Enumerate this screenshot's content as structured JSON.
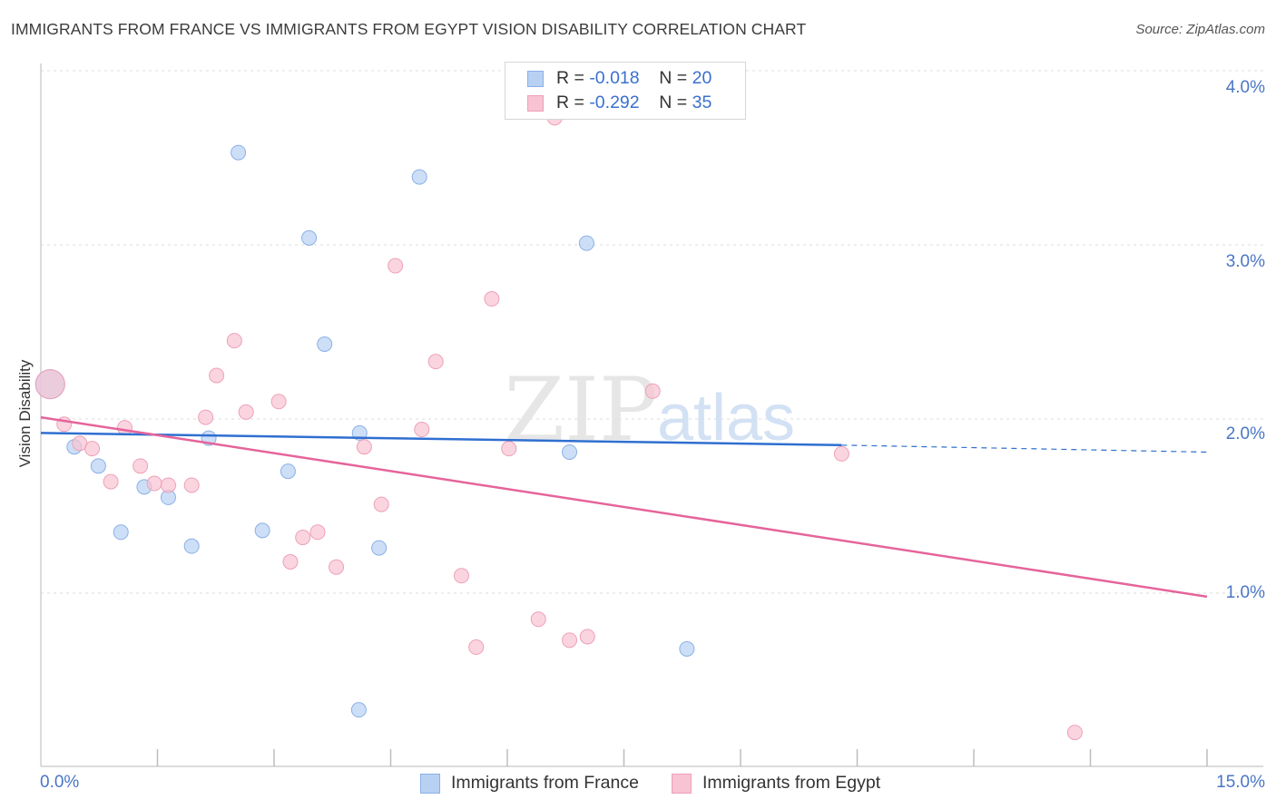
{
  "title": "IMMIGRANTS FROM FRANCE VS IMMIGRANTS FROM EGYPT VISION DISABILITY CORRELATION CHART",
  "source": "Source: ZipAtlas.com",
  "watermark": {
    "part1": "ZIP",
    "part2": "atlas"
  },
  "legend": {
    "france": {
      "r_label": "R = ",
      "r_value": "-0.018",
      "n_label": "N = ",
      "n_value": "20"
    },
    "egypt": {
      "r_label": "R = ",
      "r_value": "-0.292",
      "n_label": "N = ",
      "n_value": "35"
    }
  },
  "colors": {
    "france_fill": "#b8d1f3",
    "france_stroke": "#8ab0e6",
    "france_line": "#2f6fd0",
    "egypt_fill": "#f8c3d2",
    "egypt_stroke": "#eea0b8",
    "egypt_line": "#e5649a",
    "tick_text": "#4a76c7",
    "grid": "#dcdcdc"
  },
  "chart_data": {
    "type": "scatter",
    "title": "IMMIGRANTS FROM FRANCE VS IMMIGRANTS FROM EGYPT VISION DISABILITY CORRELATION CHART",
    "xlabel": "",
    "ylabel": "Vision Disability",
    "xlim": [
      0,
      15
    ],
    "ylim": [
      0,
      4.15
    ],
    "x_tick_labels": [
      "0.0%",
      "15.0%"
    ],
    "y_ticks": [
      1.0,
      2.0,
      3.0,
      4.0
    ],
    "y_tick_labels": [
      "1.0%",
      "2.0%",
      "3.0%",
      "4.0%"
    ],
    "grid": true,
    "legend_position": "top-center",
    "series": [
      {
        "name": "Immigrants from France",
        "r": -0.018,
        "n": 20,
        "trend": {
          "x": [
            0,
            10.3
          ],
          "y": [
            1.92,
            1.85
          ],
          "dashed_to": [
            15.0,
            1.81
          ]
        },
        "points": [
          {
            "x": 0.12,
            "y": 2.2,
            "big": true
          },
          {
            "x": 0.43,
            "y": 1.84
          },
          {
            "x": 0.74,
            "y": 1.73
          },
          {
            "x": 1.03,
            "y": 1.35
          },
          {
            "x": 1.33,
            "y": 1.61
          },
          {
            "x": 1.64,
            "y": 1.55
          },
          {
            "x": 1.94,
            "y": 1.27
          },
          {
            "x": 2.16,
            "y": 1.89
          },
          {
            "x": 2.54,
            "y": 3.53
          },
          {
            "x": 2.85,
            "y": 1.36
          },
          {
            "x": 3.18,
            "y": 1.7
          },
          {
            "x": 3.45,
            "y": 3.04
          },
          {
            "x": 3.65,
            "y": 2.43
          },
          {
            "x": 4.1,
            "y": 1.92
          },
          {
            "x": 4.35,
            "y": 1.26
          },
          {
            "x": 4.09,
            "y": 0.33
          },
          {
            "x": 4.87,
            "y": 3.39
          },
          {
            "x": 6.8,
            "y": 1.81
          },
          {
            "x": 7.02,
            "y": 3.01
          },
          {
            "x": 8.31,
            "y": 0.68
          }
        ]
      },
      {
        "name": "Immigrants from Egypt",
        "r": -0.292,
        "n": 35,
        "trend": {
          "x": [
            0,
            15.0
          ],
          "y": [
            2.01,
            0.98
          ]
        },
        "points": [
          {
            "x": 0.12,
            "y": 2.2,
            "big": true
          },
          {
            "x": 0.3,
            "y": 1.97
          },
          {
            "x": 0.5,
            "y": 1.86
          },
          {
            "x": 0.66,
            "y": 1.83
          },
          {
            "x": 0.9,
            "y": 1.64
          },
          {
            "x": 1.08,
            "y": 1.95
          },
          {
            "x": 1.28,
            "y": 1.73
          },
          {
            "x": 1.46,
            "y": 1.63
          },
          {
            "x": 1.64,
            "y": 1.62
          },
          {
            "x": 1.94,
            "y": 1.62
          },
          {
            "x": 2.12,
            "y": 2.01
          },
          {
            "x": 2.26,
            "y": 2.25
          },
          {
            "x": 2.49,
            "y": 2.45
          },
          {
            "x": 2.64,
            "y": 2.04
          },
          {
            "x": 3.06,
            "y": 2.1
          },
          {
            "x": 3.21,
            "y": 1.18
          },
          {
            "x": 3.37,
            "y": 1.32
          },
          {
            "x": 3.56,
            "y": 1.35
          },
          {
            "x": 3.8,
            "y": 1.15
          },
          {
            "x": 4.16,
            "y": 1.84
          },
          {
            "x": 4.56,
            "y": 2.88
          },
          {
            "x": 4.38,
            "y": 1.51
          },
          {
            "x": 4.9,
            "y": 1.94
          },
          {
            "x": 5.08,
            "y": 2.33
          },
          {
            "x": 5.41,
            "y": 1.1
          },
          {
            "x": 5.6,
            "y": 0.69
          },
          {
            "x": 5.8,
            "y": 2.69
          },
          {
            "x": 6.02,
            "y": 1.83
          },
          {
            "x": 6.4,
            "y": 0.85
          },
          {
            "x": 6.61,
            "y": 3.73
          },
          {
            "x": 6.8,
            "y": 0.73
          },
          {
            "x": 7.03,
            "y": 0.75
          },
          {
            "x": 7.87,
            "y": 2.16
          },
          {
            "x": 10.3,
            "y": 1.8
          },
          {
            "x": 13.3,
            "y": 0.2
          }
        ]
      }
    ]
  }
}
